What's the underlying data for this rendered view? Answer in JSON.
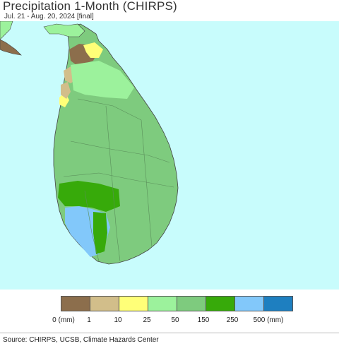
{
  "header": {
    "title": "Precipitation 1-Month (CHIRPS)",
    "subtitle": "Jul. 21 - Aug. 20, 2024 [final]"
  },
  "map": {
    "region": "Sri Lanka",
    "ocean_color": "#c8fcfc",
    "land_color": "#7ecb7e"
  },
  "legend": {
    "colors": [
      "#8c6e4c",
      "#d2be8a",
      "#ffff78",
      "#9cf29c",
      "#7ecb7e",
      "#37aa0a",
      "#82c8fa",
      "#1e7fc0"
    ],
    "labels": [
      "0 (mm)",
      "1",
      "10",
      "25",
      "50",
      "150",
      "250",
      "500 (mm)"
    ]
  },
  "footer": {
    "source": "Source: CHIRPS, UCSB, Climate Hazards Center"
  }
}
